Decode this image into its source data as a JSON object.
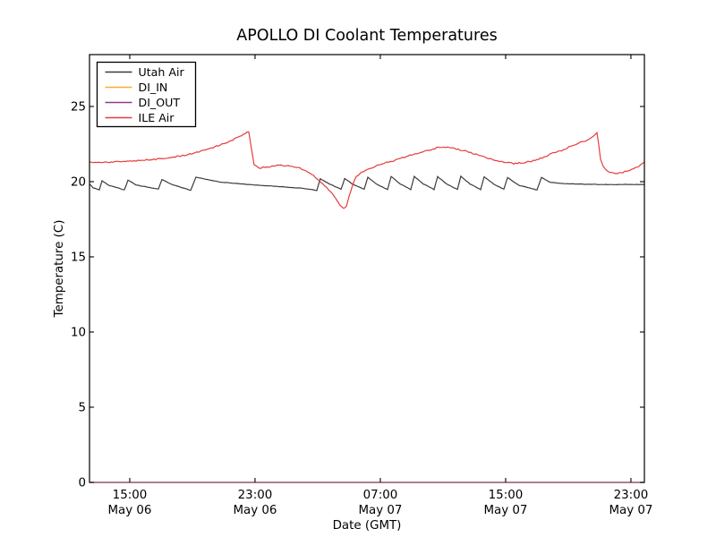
{
  "chart_data": {
    "type": "line",
    "title": "APOLLO DI Coolant Temperatures",
    "xlabel": "Date (GMT)",
    "ylabel": "Temperature (C)",
    "x_unit": "hours since May 06 00:00 GMT",
    "xlim": [
      12.43,
      47.86
    ],
    "ylim": [
      0,
      28.45
    ],
    "grid": false,
    "legend_position": "upper left",
    "x_ticks": [
      {
        "value": 15,
        "time": "15:00",
        "date": "May 06"
      },
      {
        "value": 23,
        "time": "23:00",
        "date": "May 06"
      },
      {
        "value": 31,
        "time": "07:00",
        "date": "May 07"
      },
      {
        "value": 39,
        "time": "15:00",
        "date": "May 07"
      },
      {
        "value": 47,
        "time": "23:00",
        "date": "May 07"
      }
    ],
    "y_ticks": [
      {
        "value": 0,
        "label": "0"
      },
      {
        "value": 5,
        "label": "5"
      },
      {
        "value": 10,
        "label": "10"
      },
      {
        "value": 15,
        "label": "15"
      },
      {
        "value": 20,
        "label": "20"
      },
      {
        "value": 25,
        "label": "25"
      }
    ],
    "series": [
      {
        "name": "Utah Air",
        "color": "#3a3a3a",
        "noise": 0.025,
        "opacity": 1,
        "points": [
          [
            12.43,
            19.85
          ],
          [
            12.66,
            19.6
          ],
          [
            13.06,
            19.45
          ],
          [
            13.23,
            20.05
          ],
          [
            13.69,
            19.75
          ],
          [
            14.66,
            19.45
          ],
          [
            14.89,
            20.1
          ],
          [
            15.4,
            19.78
          ],
          [
            16.83,
            19.5
          ],
          [
            17.06,
            20.15
          ],
          [
            17.69,
            19.82
          ],
          [
            18.89,
            19.42
          ],
          [
            19.23,
            20.3
          ],
          [
            20.72,
            19.98
          ],
          [
            22.72,
            19.8
          ],
          [
            24.43,
            19.68
          ],
          [
            26.14,
            19.55
          ],
          [
            26.94,
            19.42
          ],
          [
            27.17,
            20.2
          ],
          [
            27.74,
            19.85
          ],
          [
            28.49,
            19.5
          ],
          [
            28.72,
            20.2
          ],
          [
            29.29,
            19.8
          ],
          [
            29.97,
            19.5
          ],
          [
            30.2,
            20.3
          ],
          [
            30.77,
            19.82
          ],
          [
            31.46,
            19.48
          ],
          [
            31.69,
            20.35
          ],
          [
            32.26,
            19.85
          ],
          [
            32.94,
            19.48
          ],
          [
            33.17,
            20.35
          ],
          [
            33.74,
            19.85
          ],
          [
            34.43,
            19.48
          ],
          [
            34.66,
            20.33
          ],
          [
            35.23,
            19.85
          ],
          [
            35.92,
            19.48
          ],
          [
            36.14,
            20.35
          ],
          [
            36.72,
            19.85
          ],
          [
            37.4,
            19.48
          ],
          [
            37.63,
            20.33
          ],
          [
            38.26,
            19.82
          ],
          [
            38.89,
            19.5
          ],
          [
            39.12,
            20.28
          ],
          [
            39.86,
            19.75
          ],
          [
            41.0,
            19.45
          ],
          [
            41.29,
            20.28
          ],
          [
            41.86,
            19.95
          ],
          [
            42.6,
            19.87
          ],
          [
            43.57,
            19.84
          ],
          [
            44.72,
            19.82
          ],
          [
            45.86,
            19.8
          ],
          [
            47.0,
            19.82
          ],
          [
            47.86,
            19.8
          ]
        ]
      },
      {
        "name": "DI_IN",
        "color": "#ffac33",
        "noise": 0,
        "opacity": 0.6,
        "points": [
          [
            12.43,
            0
          ],
          [
            47.86,
            0
          ]
        ]
      },
      {
        "name": "DI_OUT",
        "color": "#8f3a96",
        "noise": 0,
        "opacity": 0.6,
        "points": [
          [
            12.43,
            0
          ],
          [
            47.86,
            0
          ]
        ]
      },
      {
        "name": "ILE Air",
        "color": "#e63c3c",
        "noise": 0.09,
        "opacity": 1,
        "points": [
          [
            12.43,
            21.3
          ],
          [
            13.12,
            21.27
          ],
          [
            13.8,
            21.3
          ],
          [
            14.49,
            21.33
          ],
          [
            15.17,
            21.37
          ],
          [
            15.86,
            21.42
          ],
          [
            16.54,
            21.48
          ],
          [
            17.23,
            21.56
          ],
          [
            17.92,
            21.65
          ],
          [
            18.6,
            21.78
          ],
          [
            19.29,
            21.95
          ],
          [
            19.97,
            22.15
          ],
          [
            20.66,
            22.4
          ],
          [
            21.34,
            22.65
          ],
          [
            21.92,
            22.95
          ],
          [
            22.26,
            23.15
          ],
          [
            22.49,
            23.3
          ],
          [
            22.6,
            23.35
          ],
          [
            22.77,
            22.2
          ],
          [
            22.94,
            21.1
          ],
          [
            23.29,
            20.9
          ],
          [
            23.86,
            21.0
          ],
          [
            24.54,
            21.07
          ],
          [
            25.23,
            21.05
          ],
          [
            25.74,
            20.95
          ],
          [
            26.26,
            20.7
          ],
          [
            26.72,
            20.4
          ],
          [
            27.12,
            20.05
          ],
          [
            27.46,
            19.7
          ],
          [
            27.8,
            19.35
          ],
          [
            28.14,
            18.9
          ],
          [
            28.43,
            18.45
          ],
          [
            28.66,
            18.2
          ],
          [
            28.83,
            18.35
          ],
          [
            29.0,
            19.0
          ],
          [
            29.23,
            19.8
          ],
          [
            29.46,
            20.35
          ],
          [
            29.8,
            20.6
          ],
          [
            30.26,
            20.85
          ],
          [
            30.83,
            21.1
          ],
          [
            31.52,
            21.3
          ],
          [
            32.2,
            21.5
          ],
          [
            32.89,
            21.75
          ],
          [
            33.57,
            21.95
          ],
          [
            34.14,
            22.12
          ],
          [
            34.72,
            22.28
          ],
          [
            35.29,
            22.28
          ],
          [
            35.86,
            22.18
          ],
          [
            36.54,
            22.0
          ],
          [
            37.23,
            21.8
          ],
          [
            37.92,
            21.55
          ],
          [
            38.49,
            21.38
          ],
          [
            39.06,
            21.25
          ],
          [
            39.63,
            21.2
          ],
          [
            40.2,
            21.28
          ],
          [
            40.77,
            21.4
          ],
          [
            41.34,
            21.6
          ],
          [
            41.92,
            21.85
          ],
          [
            42.49,
            22.05
          ],
          [
            43.06,
            22.3
          ],
          [
            43.57,
            22.5
          ],
          [
            44.03,
            22.7
          ],
          [
            44.43,
            22.9
          ],
          [
            44.66,
            23.05
          ],
          [
            44.83,
            23.25
          ],
          [
            44.94,
            22.5
          ],
          [
            45.06,
            21.5
          ],
          [
            45.23,
            21.0
          ],
          [
            45.51,
            20.7
          ],
          [
            45.91,
            20.55
          ],
          [
            46.37,
            20.6
          ],
          [
            46.83,
            20.72
          ],
          [
            47.29,
            20.9
          ],
          [
            47.86,
            21.3
          ]
        ]
      }
    ]
  }
}
